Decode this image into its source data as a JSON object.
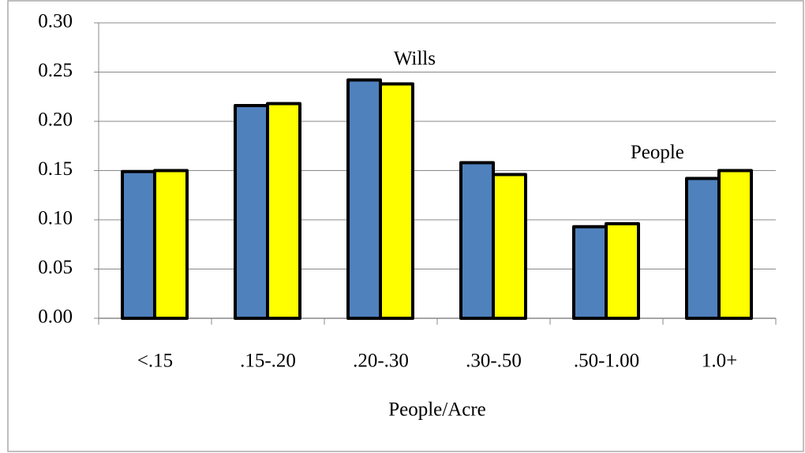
{
  "chart_data": {
    "type": "bar",
    "x_label": "People/Acre",
    "categories": [
      "<.15",
      ".15-.20",
      ".20-.30",
      ".30-.50",
      ".50-1.00",
      "1.0+"
    ],
    "series": [
      {
        "name": "Wills",
        "color": "#4f81bd",
        "values": [
          0.149,
          0.216,
          0.242,
          0.158,
          0.093,
          0.142
        ]
      },
      {
        "name": "People",
        "color": "#ffff00",
        "values": [
          0.15,
          0.218,
          0.238,
          0.146,
          0.096,
          0.15
        ]
      }
    ],
    "ylim": [
      0,
      0.3
    ],
    "yticks": [
      {
        "value": 0,
        "label": "0.00"
      },
      {
        "value": 0.05,
        "label": "0.05"
      },
      {
        "value": 0.1,
        "label": "0.10"
      },
      {
        "value": 0.15,
        "label": "0.15"
      },
      {
        "value": 0.2,
        "label": "0.20"
      },
      {
        "value": 0.25,
        "label": "0.25"
      },
      {
        "value": 0.3,
        "label": "0.30"
      }
    ],
    "grid": true
  }
}
